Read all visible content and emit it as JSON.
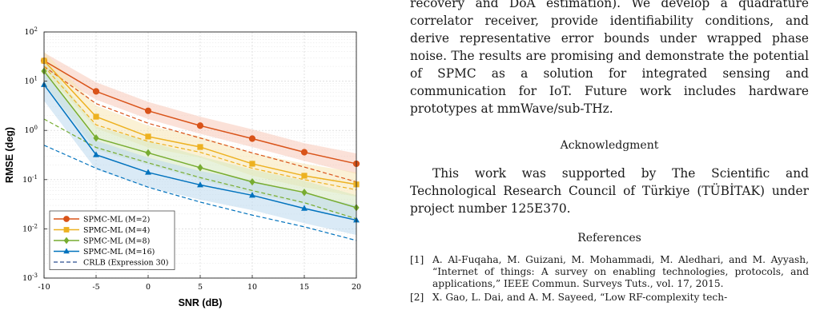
{
  "chart_data": {
    "type": "line",
    "xlabel": "SNR (dB)",
    "ylabel": "RMSE (deg)",
    "x": [
      -10,
      -5,
      0,
      5,
      10,
      15,
      20
    ],
    "xlim": [
      -10,
      20
    ],
    "ylim_log10": [
      -3,
      2
    ],
    "yscale": "log",
    "grid": true,
    "legend_position": "bottom-left",
    "x_ticks": [
      "-10",
      "-5",
      "0",
      "5",
      "10",
      "15",
      "20"
    ],
    "y_ticks": [
      {
        "base": "10",
        "exp": "-3"
      },
      {
        "base": "10",
        "exp": "-2"
      },
      {
        "base": "10",
        "exp": "-1"
      },
      {
        "base": "10",
        "exp": "0"
      },
      {
        "base": "10",
        "exp": "1"
      },
      {
        "base": "10",
        "exp": "2"
      }
    ],
    "series": [
      {
        "name": "SPMC-ML (M=2)",
        "color": "#d95319",
        "band": "#f7c9b8",
        "marker": "circle",
        "values": [
          26,
          6.2,
          2.5,
          1.25,
          0.68,
          0.36,
          0.21
        ],
        "band_low": [
          18,
          4.2,
          1.7,
          0.85,
          0.46,
          0.24,
          0.13
        ],
        "band_high": [
          38,
          9.5,
          3.8,
          1.9,
          1.05,
          0.55,
          0.34
        ],
        "crlb": [
          20,
          3.5,
          1.4,
          0.7,
          0.35,
          0.18,
          0.09
        ]
      },
      {
        "name": "SPMC-ML (M=4)",
        "color": "#edb120",
        "band": "#f8e6b2",
        "marker": "square",
        "values": [
          26,
          1.9,
          0.75,
          0.46,
          0.21,
          0.12,
          0.08
        ],
        "band_low": [
          16,
          1.1,
          0.45,
          0.28,
          0.12,
          0.07,
          0.045
        ],
        "band_high": [
          40,
          3.2,
          1.25,
          0.75,
          0.35,
          0.21,
          0.14
        ],
        "crlb": [
          20,
          1.3,
          0.6,
          0.36,
          0.17,
          0.1,
          0.062
        ]
      },
      {
        "name": "SPMC-ML (M=8)",
        "color": "#77ac30",
        "band": "#d5e8bf",
        "marker": "diamond",
        "values": [
          16,
          0.7,
          0.35,
          0.175,
          0.09,
          0.055,
          0.027
        ],
        "band_low": [
          9,
          0.4,
          0.2,
          0.1,
          0.052,
          0.032,
          0.016
        ],
        "band_high": [
          28,
          1.2,
          0.6,
          0.3,
          0.16,
          0.095,
          0.048
        ],
        "crlb": [
          1.7,
          0.45,
          0.22,
          0.11,
          0.06,
          0.034,
          0.016
        ]
      },
      {
        "name": "SPMC-ML (M=16)",
        "color": "#0072bd",
        "band": "#bcd8ee",
        "marker": "triangle",
        "values": [
          8.5,
          0.32,
          0.14,
          0.078,
          0.048,
          0.026,
          0.015
        ],
        "band_low": [
          4,
          0.16,
          0.07,
          0.039,
          0.024,
          0.013,
          0.0075
        ],
        "band_high": [
          16,
          0.62,
          0.28,
          0.15,
          0.095,
          0.052,
          0.03
        ],
        "crlb": [
          0.5,
          0.17,
          0.07,
          0.035,
          0.019,
          0.011,
          0.0058
        ]
      }
    ],
    "crlb_legend": "CRLB (Expression 30)"
  },
  "text": {
    "para1": "recovery and DoA estimation). We develop a quadrature correlator receiver, provide identifiability conditions, and derive representative error bounds under wrapped phase noise. The results are promising and demonstrate the potential of SPMC as a solution for integrated sensing and communication for IoT. Future work includes hardware prototypes at mmWave/sub-THz.",
    "ack_heading": "Acknowledgment",
    "ack_body": "This work was supported by The Scientific and Technological Research Council of Türkiye (TÜBİTAK) under project number 125E370.",
    "refs_heading": "References",
    "refs": [
      {
        "num": "[1]",
        "text": "A. Al-Fuqaha, M. Guizani, M. Mohammadi, M. Aledhari, and M. Ayyash, “Internet of things: A survey on enabling technologies, protocols, and applications,” IEEE Commun. Surveys Tuts., vol. 17, 2015."
      },
      {
        "num": "[2]",
        "text": "X. Gao, L. Dai, and A. M. Sayeed, “Low RF-complexity tech-"
      }
    ]
  }
}
